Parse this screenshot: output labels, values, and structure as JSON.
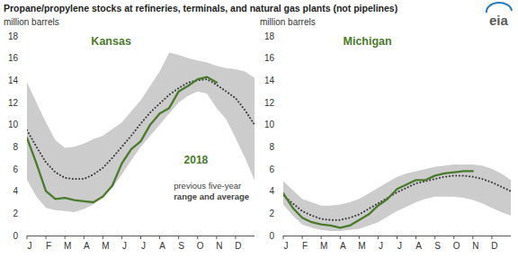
{
  "title": "Propane/propylene stocks at refineries, terminals, and natural gas plants (not pipelines)",
  "source_logo": "eia",
  "chart_data": [
    {
      "type": "line",
      "title": "Kansas",
      "y_label": "million barrels",
      "x": [
        0,
        0.5,
        1,
        1.5,
        2,
        2.5,
        3,
        3.5,
        4,
        4.5,
        5,
        5.5,
        6,
        6.5,
        7,
        7.5,
        8,
        8.5,
        9,
        9.5,
        10,
        10.5,
        11,
        11.5,
        12
      ],
      "xlim": [
        0,
        12
      ],
      "xticks": [
        {
          "value": 0,
          "label": "J"
        },
        {
          "value": 1,
          "label": "F"
        },
        {
          "value": 2,
          "label": "M"
        },
        {
          "value": 3,
          "label": "A"
        },
        {
          "value": 4,
          "label": "M"
        },
        {
          "value": 5,
          "label": "J"
        },
        {
          "value": 6,
          "label": "J"
        },
        {
          "value": 7,
          "label": "A"
        },
        {
          "value": 8,
          "label": "S"
        },
        {
          "value": 9,
          "label": "O"
        },
        {
          "value": 10,
          "label": "N"
        },
        {
          "value": 11,
          "label": "D"
        }
      ],
      "ylim": [
        0,
        18
      ],
      "yticks": [
        0,
        2,
        4,
        6,
        8,
        10,
        12,
        14,
        16,
        18
      ],
      "grid": false,
      "range": {
        "color": "#cccccc",
        "low": [
          5.0,
          3.5,
          2.5,
          2.3,
          2.2,
          2.1,
          2.4,
          2.8,
          3.5,
          4.3,
          5.5,
          6.8,
          8.0,
          9.0,
          10.0,
          11.0,
          12.0,
          12.6,
          13.0,
          12.8,
          11.5,
          10.5,
          8.8,
          7.0,
          5.0
        ],
        "high": [
          13.8,
          12.0,
          10.2,
          8.6,
          7.9,
          8.0,
          8.3,
          8.7,
          9.0,
          9.6,
          10.2,
          11.2,
          12.2,
          13.5,
          14.8,
          16.5,
          16.3,
          16.0,
          15.8,
          15.6,
          15.3,
          15.1,
          15.0,
          14.8,
          14.2
        ]
      },
      "series": [
        {
          "type": "line",
          "color": "#4a7a2b",
          "line_style": "solid",
          "values": [
            8.8,
            6.5,
            4.0,
            3.3,
            3.4,
            3.2,
            3.1,
            3.0,
            3.5,
            4.5,
            6.5,
            7.8,
            8.5,
            10.0,
            11.0,
            11.5,
            13.0,
            13.5,
            14.1,
            14.3,
            13.8,
            null,
            null,
            null,
            null
          ]
        },
        {
          "type": "line",
          "color": "#3a3a3a",
          "line_style": "dotted",
          "values": [
            9.5,
            8.0,
            6.6,
            5.7,
            5.2,
            5.1,
            5.1,
            5.5,
            6.1,
            7.0,
            8.0,
            9.0,
            10.1,
            11.1,
            11.9,
            12.7,
            13.3,
            13.8,
            14.0,
            14.1,
            13.6,
            13.0,
            12.4,
            11.3,
            10.0
          ]
        }
      ],
      "annotations": [
        {
          "text": "2018"
        },
        {
          "text": "previous five-year"
        },
        {
          "text": "range and average"
        }
      ]
    },
    {
      "type": "line",
      "title": "Michigan",
      "y_label": "million barrels",
      "x": [
        0,
        0.5,
        1,
        1.5,
        2,
        2.5,
        3,
        3.5,
        4,
        4.5,
        5,
        5.5,
        6,
        6.5,
        7,
        7.5,
        8,
        8.5,
        9,
        9.5,
        10,
        10.5,
        11,
        11.5,
        12
      ],
      "xlim": [
        0,
        12
      ],
      "xticks": [
        {
          "value": 0,
          "label": "J"
        },
        {
          "value": 1,
          "label": "F"
        },
        {
          "value": 2,
          "label": "M"
        },
        {
          "value": 3,
          "label": "A"
        },
        {
          "value": 4,
          "label": "M"
        },
        {
          "value": 5,
          "label": "J"
        },
        {
          "value": 6,
          "label": "J"
        },
        {
          "value": 7,
          "label": "A"
        },
        {
          "value": 8,
          "label": "S"
        },
        {
          "value": 9,
          "label": "O"
        },
        {
          "value": 10,
          "label": "N"
        },
        {
          "value": 11,
          "label": "D"
        }
      ],
      "ylim": [
        0,
        18
      ],
      "yticks": [
        0,
        2,
        4,
        6,
        8,
        10,
        12,
        14,
        16,
        18
      ],
      "grid": false,
      "range": {
        "color": "#cccccc",
        "low": [
          2.8,
          1.8,
          1.0,
          0.7,
          0.5,
          0.4,
          0.4,
          0.5,
          0.6,
          0.9,
          1.2,
          1.7,
          2.2,
          2.6,
          3.0,
          3.3,
          3.5,
          3.5,
          3.5,
          3.4,
          3.2,
          2.9,
          2.5,
          2.1,
          1.8
        ],
        "high": [
          4.9,
          4.1,
          3.3,
          3.0,
          2.7,
          2.7,
          2.8,
          3.0,
          3.3,
          3.8,
          4.3,
          4.8,
          5.3,
          5.6,
          5.8,
          6.0,
          6.2,
          6.3,
          6.4,
          6.4,
          6.4,
          6.3,
          6.0,
          5.6,
          5.0
        ]
      },
      "series": [
        {
          "type": "line",
          "color": "#4a7a2b",
          "line_style": "solid",
          "values": [
            3.8,
            2.5,
            1.6,
            1.2,
            1.0,
            0.9,
            0.7,
            0.9,
            1.4,
            1.9,
            2.7,
            3.3,
            4.2,
            4.6,
            5.0,
            5.0,
            5.4,
            5.6,
            5.7,
            5.8,
            5.8,
            null,
            null,
            null,
            null
          ]
        },
        {
          "type": "line",
          "color": "#3a3a3a",
          "line_style": "dotted",
          "values": [
            3.6,
            2.9,
            2.2,
            1.8,
            1.5,
            1.4,
            1.4,
            1.6,
            1.9,
            2.4,
            2.9,
            3.4,
            3.9,
            4.3,
            4.7,
            4.9,
            5.1,
            5.3,
            5.4,
            5.4,
            5.3,
            5.1,
            4.8,
            4.4,
            4.0
          ]
        }
      ]
    }
  ]
}
